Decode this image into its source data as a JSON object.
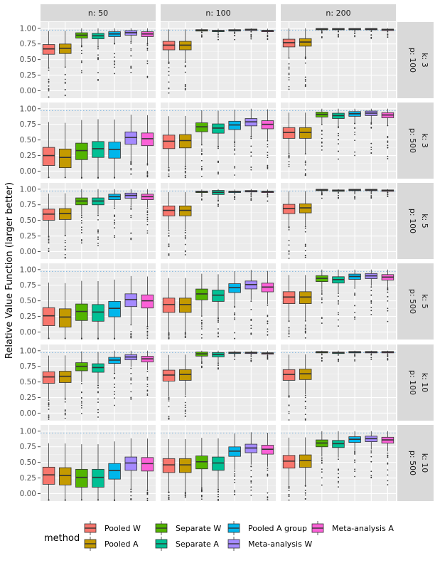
{
  "chart_data": {
    "type": "box",
    "ylabel": "Relative Value Function (larger better)",
    "ylim": [
      -0.12,
      1.1
    ],
    "yticks": [
      "0.00",
      "0.25",
      "0.50",
      "0.75",
      "1.00"
    ],
    "reference_line": 0.97,
    "col_facets": [
      "n: 50",
      "n: 100",
      "n: 200"
    ],
    "row_facets": [
      {
        "k": "k: 3",
        "p": "p: 100"
      },
      {
        "k": "k: 3",
        "p": "p: 500"
      },
      {
        "k": "k: 5",
        "p": "p: 100"
      },
      {
        "k": "k: 5",
        "p": "p: 500"
      },
      {
        "k": "k: 10",
        "p": "p: 100"
      },
      {
        "k": "k: 10",
        "p": "p: 500"
      }
    ],
    "legend_title": "method",
    "methods": [
      {
        "name": "Pooled W",
        "color": "#F8766D"
      },
      {
        "name": "Pooled A",
        "color": "#C49A00"
      },
      {
        "name": "Separate W",
        "color": "#53B400"
      },
      {
        "name": "Separate A",
        "color": "#00C094"
      },
      {
        "name": "Pooled A group",
        "color": "#00B6EB"
      },
      {
        "name": "Meta-analysis W",
        "color": "#A58AFF"
      },
      {
        "name": "Meta-analysis A",
        "color": "#FB61D7"
      }
    ],
    "medians": [
      [
        [
          0.67,
          0.68,
          0.89,
          0.88,
          0.91,
          0.93,
          0.91
        ],
        [
          0.73,
          0.73,
          0.97,
          0.96,
          0.97,
          0.98,
          0.96
        ],
        [
          0.77,
          0.78,
          0.99,
          0.99,
          0.99,
          0.99,
          0.98
        ]
      ],
      [
        [
          0.25,
          0.22,
          0.33,
          0.36,
          0.35,
          0.54,
          0.52
        ],
        [
          0.48,
          0.49,
          0.71,
          0.69,
          0.74,
          0.79,
          0.75
        ],
        [
          0.62,
          0.62,
          0.91,
          0.89,
          0.92,
          0.93,
          0.9
        ]
      ],
      [
        [
          0.6,
          0.61,
          0.81,
          0.81,
          0.88,
          0.9,
          0.88
        ],
        [
          0.66,
          0.66,
          0.96,
          0.95,
          0.96,
          0.97,
          0.96
        ],
        [
          0.69,
          0.7,
          0.99,
          0.98,
          0.99,
          0.99,
          0.98
        ]
      ],
      [
        [
          0.26,
          0.24,
          0.33,
          0.32,
          0.38,
          0.52,
          0.5
        ],
        [
          0.44,
          0.44,
          0.61,
          0.59,
          0.71,
          0.76,
          0.72
        ],
        [
          0.56,
          0.56,
          0.86,
          0.84,
          0.89,
          0.9,
          0.88
        ]
      ],
      [
        [
          0.58,
          0.59,
          0.75,
          0.73,
          0.85,
          0.9,
          0.87
        ],
        [
          0.61,
          0.62,
          0.95,
          0.94,
          0.97,
          0.97,
          0.96
        ],
        [
          0.62,
          0.63,
          0.98,
          0.97,
          0.98,
          0.98,
          0.98
        ]
      ],
      [
        [
          0.3,
          0.29,
          0.26,
          0.26,
          0.37,
          0.49,
          0.48
        ],
        [
          0.46,
          0.46,
          0.51,
          0.49,
          0.68,
          0.73,
          0.71
        ],
        [
          0.52,
          0.53,
          0.81,
          0.8,
          0.87,
          0.88,
          0.86
        ]
      ]
    ]
  }
}
